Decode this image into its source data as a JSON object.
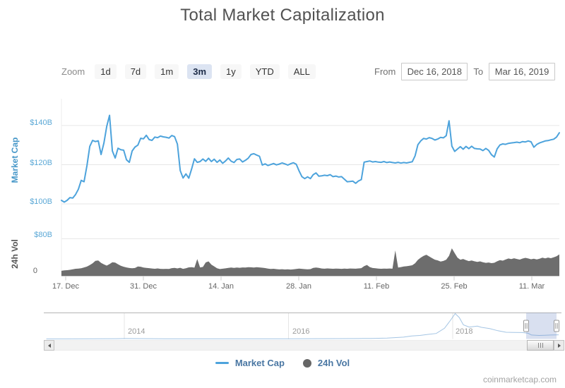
{
  "title": "Total Market Capitalization",
  "attribution": "coinmarketcap.com",
  "toolbar": {
    "zoom_label": "Zoom",
    "buttons": [
      {
        "label": "1d",
        "selected": false
      },
      {
        "label": "7d",
        "selected": false
      },
      {
        "label": "1m",
        "selected": false
      },
      {
        "label": "3m",
        "selected": true
      },
      {
        "label": "1y",
        "selected": false
      },
      {
        "label": "YTD",
        "selected": false
      },
      {
        "label": "ALL",
        "selected": false
      }
    ],
    "from_label": "From",
    "from_value": "Dec 16, 2018",
    "to_label": "To",
    "to_value": "Mar 16, 2019"
  },
  "legend": {
    "items": [
      {
        "label": "Market Cap",
        "symbol": "line",
        "color": "#4da3dc"
      },
      {
        "label": "24h Vol",
        "symbol": "circle",
        "color": "#666666"
      }
    ]
  },
  "colors": {
    "line": "#4da3dc",
    "volume_fill": "#6d6d6d",
    "axis_label_blue": "#5ba8d6",
    "grid": "#e6e6e6",
    "axis_line": "#cccccc",
    "navigator_outline": "#b4b4b4",
    "navigator_mask": "rgba(102,133,194,0.25)",
    "selected_button_bg": "#dce4f2",
    "legend_text": "#4a77a3"
  },
  "chart_data": [
    {
      "type": "line",
      "name": "Market Cap",
      "ylabel": "Market Cap",
      "unit": "billion USD",
      "x_start": "Dec 16, 2018",
      "x_end": "Mar 16, 2019",
      "xticks": [
        "17. Dec",
        "31. Dec",
        "14. Jan",
        "28. Jan",
        "11. Feb",
        "25. Feb",
        "11. Mar"
      ],
      "yticks": [
        {
          "label": "$140B",
          "value": 140
        },
        {
          "label": "$120B",
          "value": 120
        },
        {
          "label": "$100B",
          "value": 100
        }
      ],
      "ylim": [
        95,
        152
      ],
      "grid": true,
      "values": [
        101.8,
        100.9,
        101.8,
        103.2,
        103.0,
        104.8,
        107.5,
        112.0,
        111.3,
        119.5,
        129.3,
        132.4,
        131.8,
        132.2,
        125.2,
        131.0,
        139.5,
        145.2,
        127.0,
        123.4,
        128.4,
        127.6,
        127.4,
        122.5,
        121.2,
        127.0,
        129.0,
        130.0,
        133.5,
        133.2,
        135.0,
        132.8,
        132.4,
        134.1,
        133.8,
        134.6,
        134.2,
        134.0,
        133.6,
        134.9,
        134.3,
        130.5,
        117.0,
        113.2,
        115.3,
        113.1,
        117.8,
        123.0,
        121.2,
        121.6,
        122.9,
        121.7,
        123.3,
        121.6,
        122.8,
        121.2,
        122.4,
        120.7,
        121.9,
        123.4,
        121.8,
        121.1,
        122.7,
        122.9,
        121.4,
        122.2,
        123.3,
        125.2,
        125.6,
        124.9,
        124.3,
        119.8,
        120.4,
        119.6,
        120.1,
        120.6,
        119.9,
        120.3,
        120.9,
        120.4,
        119.8,
        120.5,
        121.0,
        120.2,
        116.8,
        113.9,
        112.9,
        113.8,
        112.9,
        114.9,
        115.8,
        114.1,
        114.3,
        114.6,
        114.4,
        114.9,
        113.9,
        114.2,
        113.7,
        113.9,
        112.6,
        111.3,
        111.4,
        111.6,
        110.5,
        111.7,
        112.4,
        121.3,
        121.6,
        121.9,
        121.4,
        121.6,
        121.3,
        121.2,
        121.6,
        121.1,
        121.4,
        121.1,
        120.9,
        121.2,
        120.8,
        121.1,
        120.9,
        121.2,
        121.5,
        124.5,
        130.2,
        132.1,
        133.4,
        133.1,
        133.8,
        133.4,
        132.6,
        133.1,
        133.9,
        133.7,
        134.8,
        142.4,
        129.5,
        126.8,
        128.0,
        129.2,
        127.9,
        129.3,
        128.2,
        129.4,
        128.3,
        128.1,
        128.0,
        127.2,
        128.3,
        127.3,
        125.1,
        123.9,
        128.1,
        130.1,
        130.6,
        130.4,
        130.9,
        131.1,
        131.3,
        131.5,
        131.2,
        131.8,
        131.6,
        132.1,
        131.7,
        128.9,
        130.3,
        131.1,
        131.6,
        132.1,
        132.3,
        132.7,
        133.0,
        134.1,
        136.3
      ]
    },
    {
      "type": "area",
      "name": "24h Vol",
      "ylabel": "24h Vol",
      "unit": "billion USD",
      "yticks": [
        {
          "label": "$80B",
          "value": 80
        },
        {
          "label": "0",
          "value": 0
        }
      ],
      "ylim": [
        0,
        80
      ],
      "values": [
        11.5,
        12.4,
        12.8,
        13.5,
        14.6,
        15.8,
        16.2,
        17.0,
        18.6,
        20.5,
        23.8,
        27.5,
        32.8,
        33.5,
        28.4,
        25.2,
        22.6,
        25.8,
        29.6,
        29.0,
        25.4,
        22.3,
        20.2,
        18.6,
        17.5,
        16.8,
        17.4,
        20.8,
        20.2,
        18.4,
        17.6,
        17.1,
        16.4,
        15.8,
        16.5,
        15.7,
        15.3,
        15.6,
        15.4,
        17.2,
        17.8,
        16.6,
        17.9,
        15.7,
        16.8,
        18.9,
        19.3,
        18.2,
        36.5,
        18.7,
        19.8,
        29.4,
        31.6,
        24.7,
        20.9,
        16.8,
        15.2,
        15.9,
        16.7,
        17.6,
        18.3,
        17.8,
        18.4,
        17.9,
        18.6,
        18.3,
        19.2,
        19.0,
        18.4,
        19.1,
        18.7,
        18.0,
        17.3,
        16.3,
        15.4,
        15.8,
        15.1,
        14.4,
        14.9,
        14.3,
        14.8,
        14.2,
        14.7,
        15.4,
        16.2,
        15.6,
        15.0,
        14.6,
        15.1,
        17.7,
        18.3,
        17.8,
        16.4,
        16.0,
        16.5,
        16.2,
        15.8,
        16.3,
        16.0,
        15.7,
        16.1,
        15.8,
        16.4,
        16.1,
        15.9,
        16.5,
        17.2,
        21.5,
        24.0,
        19.5,
        17.5,
        16.8,
        16.2,
        15.8,
        16.3,
        15.9,
        16.4,
        16.0,
        55.0,
        18.5,
        19.4,
        20.6,
        21.3,
        22.2,
        23.4,
        27.5,
        34.8,
        39.6,
        43.3,
        45.8,
        42.2,
        38.6,
        35.3,
        33.8,
        31.4,
        32.6,
        35.2,
        43.5,
        59.5,
        49.3,
        39.6,
        35.2,
        36.8,
        34.4,
        32.2,
        33.5,
        31.8,
        30.4,
        31.6,
        29.8,
        28.4,
        29.2,
        27.8,
        28.6,
        31.8,
        34.4,
        33.2,
        35.6,
        37.8,
        36.5,
        38.2,
        36.8,
        35.4,
        37.6,
        39.2,
        37.8,
        36.2,
        37.4,
        35.8,
        37.2,
        39.4,
        38.1,
        39.8,
        38.4,
        40.2,
        42.6,
        46.5
      ]
    },
    {
      "type": "area",
      "name": "Navigator (all-time Market Cap)",
      "xticks": [
        "2014",
        "2016",
        "2018"
      ],
      "unit": "billion USD",
      "x_years": [
        2013.05,
        2013.3,
        2013.6,
        2013.9,
        2014.0,
        2014.2,
        2014.5,
        2014.8,
        2015.0,
        2015.2,
        2015.5,
        2015.8,
        2016.0,
        2016.3,
        2016.6,
        2016.9,
        2017.0,
        2017.2,
        2017.4,
        2017.5,
        2017.6,
        2017.7,
        2017.8,
        2017.9,
        2017.97,
        2018.03,
        2018.08,
        2018.13,
        2018.2,
        2018.3,
        2018.35,
        2018.45,
        2018.55,
        2018.65,
        2018.75,
        2018.85,
        2018.92,
        2018.96,
        2019.05,
        2019.12,
        2019.2,
        2019.29
      ],
      "values": [
        1.3,
        1.5,
        4,
        10,
        14,
        12,
        8,
        6.5,
        5.5,
        4.2,
        4.5,
        6,
        7.5,
        9,
        12.5,
        15,
        18,
        28,
        60,
        100,
        115,
        150,
        180,
        350,
        600,
        830,
        700,
        460,
        390,
        420,
        380,
        340,
        270,
        220,
        215,
        210,
        185,
        130,
        115,
        120,
        128,
        136
      ],
      "selected_range": {
        "from": "Dec 16, 2018",
        "to": "Mar 16, 2019"
      }
    }
  ]
}
